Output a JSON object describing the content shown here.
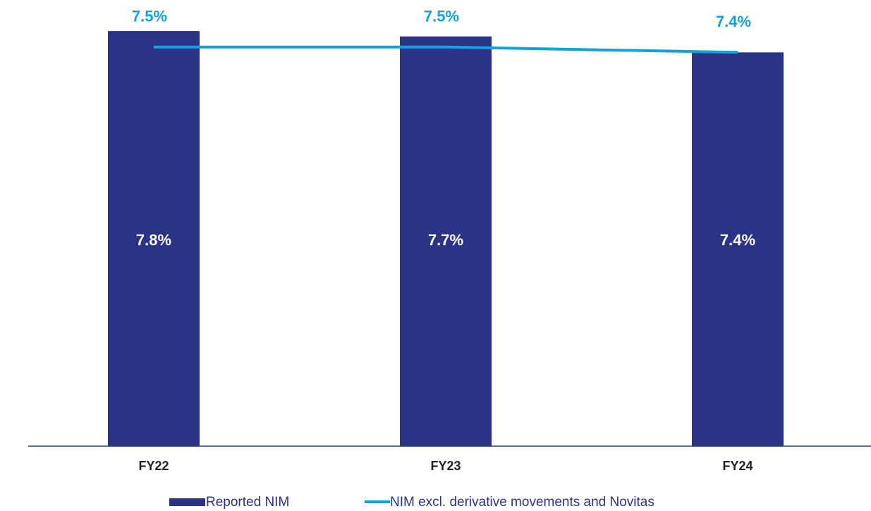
{
  "chart_data": {
    "type": "bar",
    "categories": [
      "FY22",
      "FY23",
      "FY24"
    ],
    "series": [
      {
        "name": "Reported NIM",
        "color": "#2a3386",
        "values": [
          7.8,
          7.7,
          7.4
        ],
        "value_labels": [
          "7.8%",
          "7.7%",
          "7.4%"
        ]
      },
      {
        "name": "NIM excl. derivative movements and Novitas",
        "type": "line",
        "color": "#0fa3de",
        "values": [
          7.5,
          7.5,
          7.4
        ],
        "value_labels": [
          "7.5%",
          "7.5%",
          "7.4%"
        ]
      }
    ],
    "ylim": [
      0,
      8
    ]
  }
}
